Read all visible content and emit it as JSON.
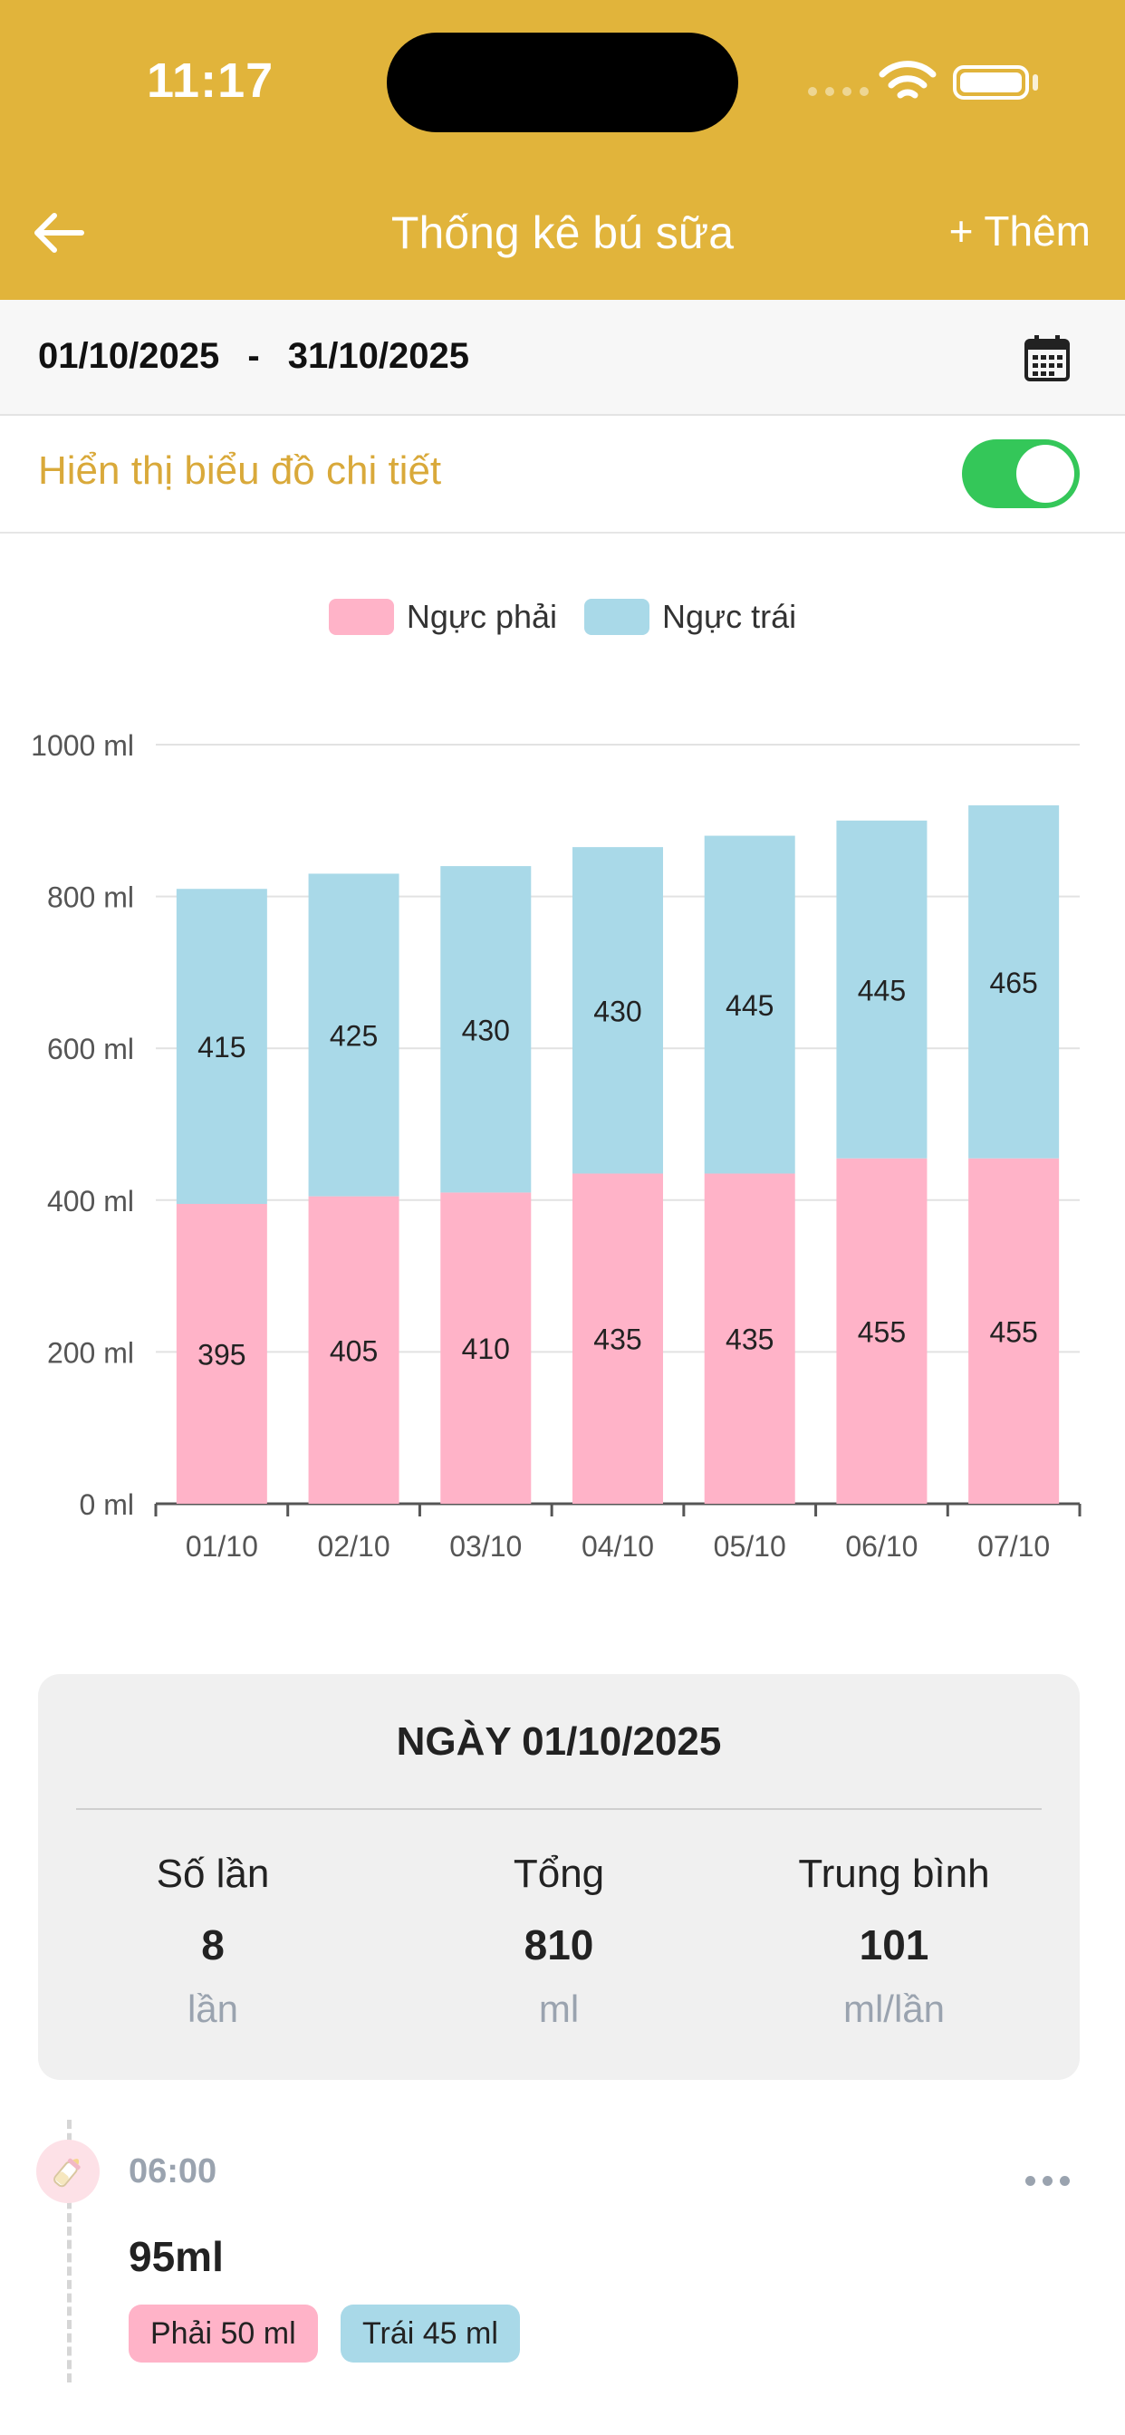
{
  "status_bar": {
    "time": "11:17"
  },
  "header": {
    "title": "Thống kê bú sữa",
    "add_label": "+ Thêm"
  },
  "date_range": {
    "start": "01/10/2025",
    "separator": "-",
    "end": "31/10/2025"
  },
  "toggle": {
    "label": "Hiển thị biểu đồ chi tiết",
    "on": true
  },
  "colors": {
    "accent": "#E1B43B",
    "right_breast": "#FFB3C8",
    "left_breast": "#A9D9E8",
    "toggle_on": "#34C759"
  },
  "chart_data": {
    "type": "bar",
    "stacked": true,
    "categories": [
      "01/10",
      "02/10",
      "03/10",
      "04/10",
      "05/10",
      "06/10",
      "07/10"
    ],
    "series": [
      {
        "name": "Ngực phải",
        "color": "#FFB3C8",
        "values": [
          395,
          405,
          410,
          435,
          435,
          455,
          455
        ]
      },
      {
        "name": "Ngực trái",
        "color": "#A9D9E8",
        "values": [
          415,
          425,
          430,
          430,
          445,
          445,
          465
        ]
      }
    ],
    "yticks": [
      "0 ml",
      "200 ml",
      "400 ml",
      "600 ml",
      "800 ml",
      "1000 ml"
    ],
    "ylim": [
      0,
      1000
    ],
    "grid": true,
    "legend_position": "top-center"
  },
  "summary": {
    "title": "NGÀY 01/10/2025",
    "stats": [
      {
        "label": "Số lần",
        "value": "8",
        "unit": "lần"
      },
      {
        "label": "Tổng",
        "value": "810",
        "unit": "ml"
      },
      {
        "label": "Trung bình",
        "value": "101",
        "unit": "ml/lần"
      }
    ]
  },
  "entry": {
    "icon": "baby-bottle-icon",
    "time": "06:00",
    "amount": "95ml",
    "right_tag": "Phải 50 ml",
    "left_tag": "Trái 45 ml"
  }
}
